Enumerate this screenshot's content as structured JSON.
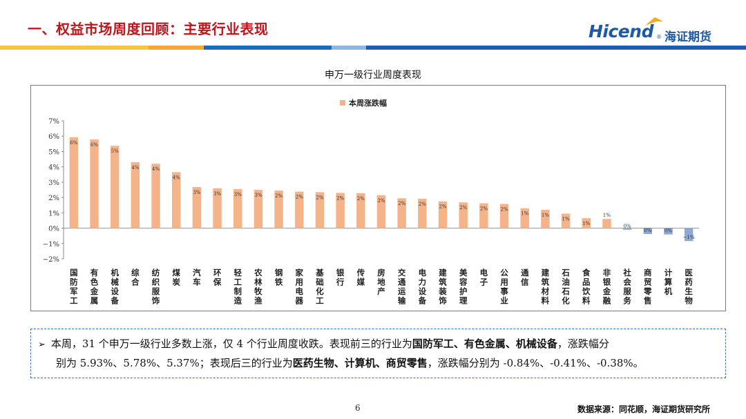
{
  "header": {
    "title": "一、权益市场周度回顾：主要行业表现",
    "logo_brand": "Hicend",
    "logo_reg": "®",
    "logo_cn": "海证期货"
  },
  "colors": {
    "title_red": "#c0141b",
    "brand_blue": "#1c5aa6",
    "bar_positive": "#f5b38a",
    "bar_negative": "#8da9d6",
    "stripe_yellow": "#f6c343",
    "stripe_blue": "#1f6cb5",
    "stripe_light": "#8fb8e1"
  },
  "chart_data": {
    "type": "bar",
    "title": "申万一级行业周度表现",
    "legend": "本周涨跌幅",
    "legend_position": "top-center",
    "ylim": [
      -2,
      7
    ],
    "yticks": [
      "7%",
      "6%",
      "5%",
      "4%",
      "3%",
      "2%",
      "1%",
      "0%",
      "−1%",
      "−2%"
    ],
    "categories": [
      "国防军工",
      "有色金属",
      "机械设备",
      "综合",
      "纺织服饰",
      "煤炭",
      "汽车",
      "环保",
      "轻工制造",
      "农林牧渔",
      "钢铁",
      "家用电器",
      "基础化工",
      "银行",
      "传媒",
      "房地产",
      "交通运输",
      "电力设备",
      "建筑装饰",
      "美容护理",
      "电子",
      "公用事业",
      "通信",
      "建筑材料",
      "石油石化",
      "食品饮料",
      "非银金融",
      "社会服务",
      "商贸零售",
      "计算机",
      "医药生物"
    ],
    "values": [
      5.93,
      5.78,
      5.37,
      4.3,
      4.2,
      3.65,
      2.68,
      2.6,
      2.55,
      2.5,
      2.45,
      2.38,
      2.35,
      2.3,
      2.28,
      2.15,
      1.95,
      1.92,
      1.75,
      1.68,
      1.62,
      1.58,
      1.3,
      1.2,
      0.95,
      0.65,
      0.6,
      -0.1,
      -0.38,
      -0.41,
      -0.84
    ],
    "data_labels": [
      "6%",
      "6%",
      "5%",
      "4%",
      "4%",
      "4%",
      "3%",
      "3%",
      "3%",
      "3%",
      "2%",
      "2%",
      "2%",
      "2%",
      "2%",
      "2%",
      "2%",
      "2%",
      "2%",
      "2%",
      "2%",
      "2%",
      "1%",
      "1%",
      "1%",
      "1%",
      "1%",
      "0%",
      "0%",
      "0%",
      "−1%"
    ]
  },
  "note": {
    "line1_a": "本周，31 个申万一级行业多数上涨，仅 4 个行业周度收跌。表现前三的行业为",
    "line1_b": "国防军工、有色金属、机械设备",
    "line1_c": "，涨跌幅分",
    "line2_a": "别为 5.93%、5.78%、5.37%；表现后三的行业为",
    "line2_b": "医药生物、计算机、商贸零售",
    "line2_c": "，涨跌幅分别为 -0.84%、-0.41%、-0.38%。"
  },
  "footer": {
    "page": "6",
    "source": "数据来源：同花顺，海证期货研究所"
  }
}
